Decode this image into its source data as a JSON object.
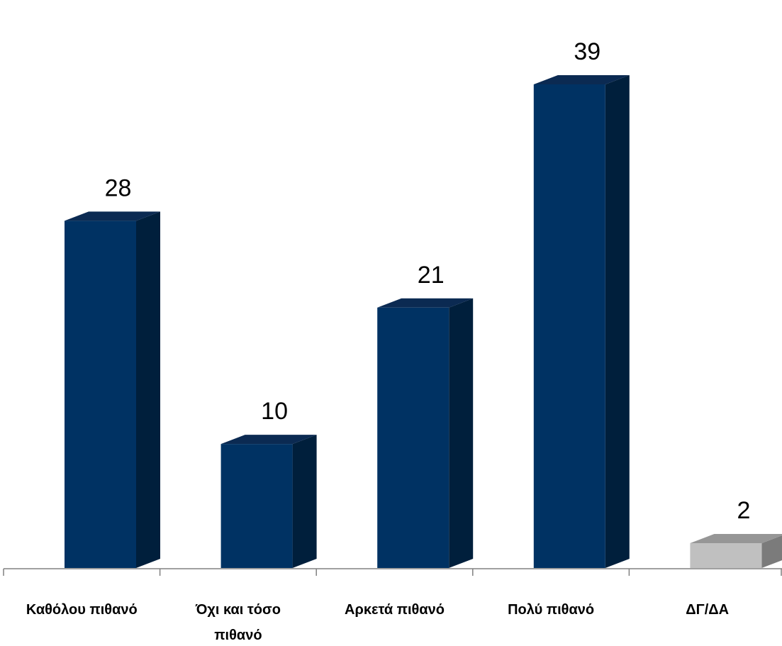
{
  "chart_data": {
    "type": "bar",
    "categories": [
      [
        "Καθόλου πιθανό"
      ],
      [
        "Όχι και τόσο",
        "πιθανό"
      ],
      [
        "Αρκετά πιθανό"
      ],
      [
        "Πολύ πιθανό"
      ],
      [
        "ΔΓ/ΔΑ"
      ]
    ],
    "values": [
      28,
      10,
      21,
      39,
      2
    ],
    "bar_styles": [
      "main",
      "main",
      "main",
      "main",
      "muted"
    ],
    "ylim": [
      0,
      39
    ],
    "grid": false,
    "legend": "none"
  },
  "colors": {
    "main_front": "#003263",
    "main_side": "#001f3c",
    "main_top": "#0b2a52",
    "muted_front": "#c0c0c0",
    "muted_side": "#7b7b7b",
    "muted_top": "#969696",
    "axis": "#808080"
  }
}
